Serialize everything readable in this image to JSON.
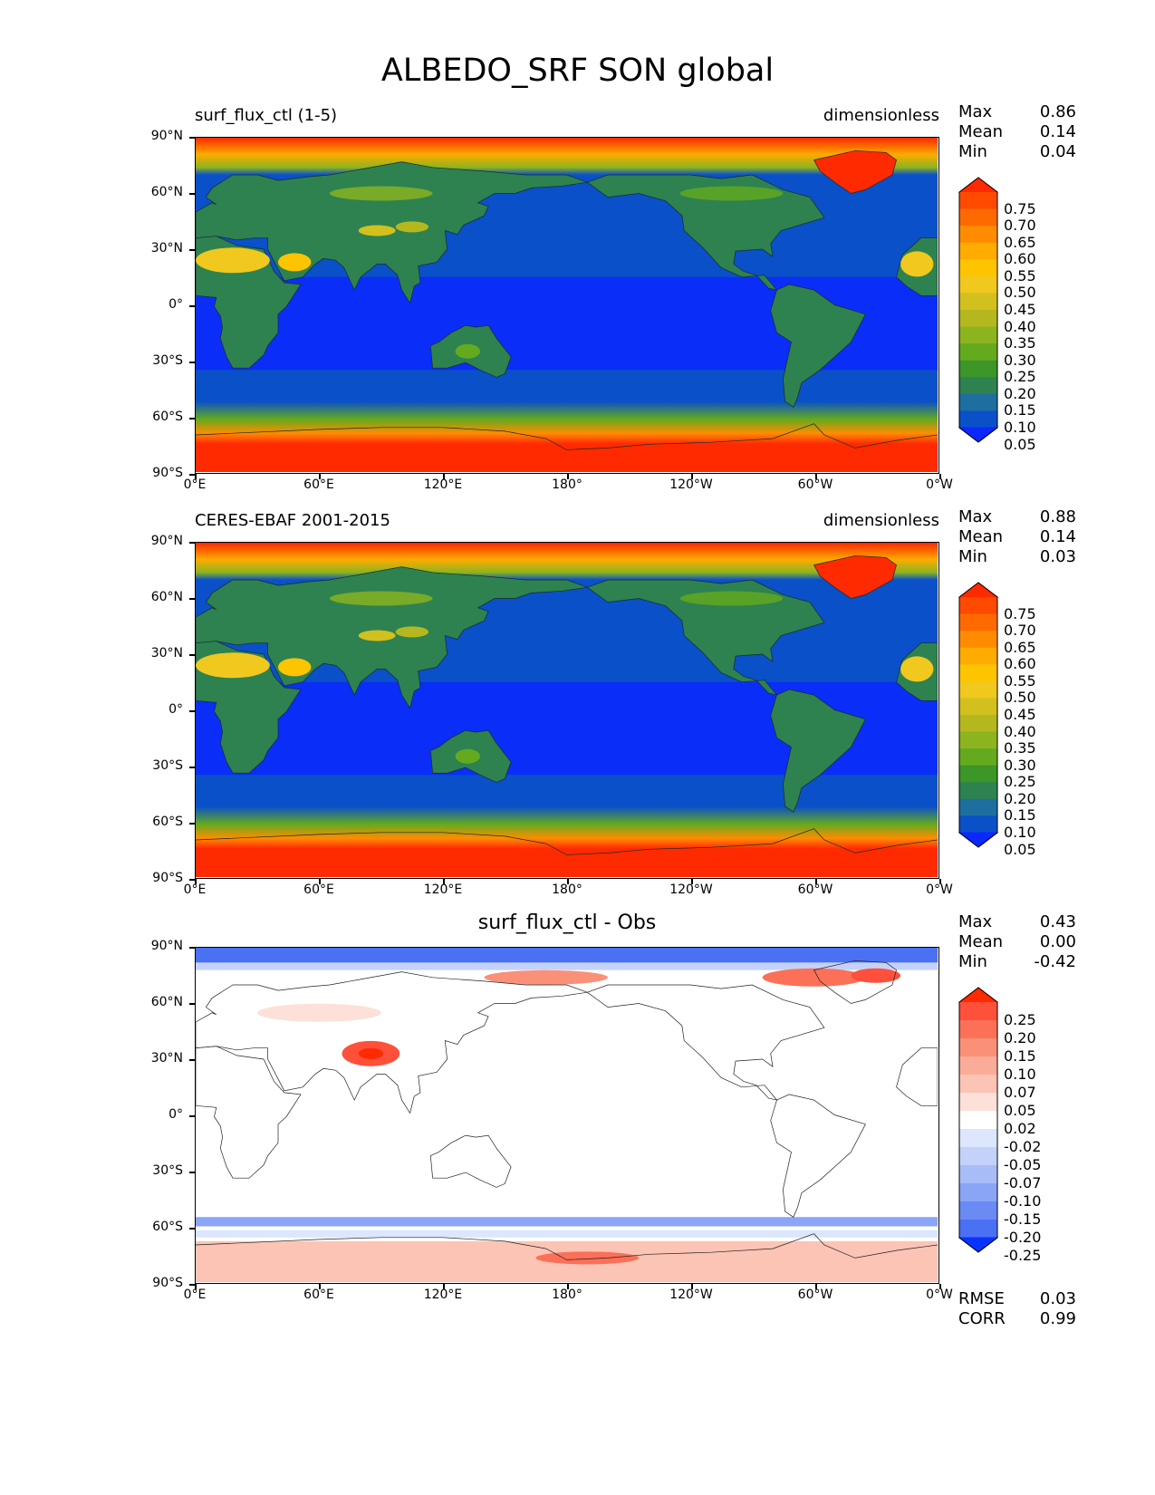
{
  "title": "ALBEDO_SRF SON global",
  "panels": [
    {
      "left_title": "surf_flux_ctl (1-5)",
      "center_title": "",
      "units": "dimensionless",
      "stats": [
        [
          "Max",
          "0.86"
        ],
        [
          "Mean",
          "0.14"
        ],
        [
          "Min",
          "0.04"
        ]
      ],
      "colorbar": "abs"
    },
    {
      "left_title": "CERES-EBAF 2001-2015",
      "center_title": "",
      "units": "dimensionless",
      "stats": [
        [
          "Max",
          "0.88"
        ],
        [
          "Mean",
          "0.14"
        ],
        [
          "Min",
          "0.03"
        ]
      ],
      "colorbar": "abs"
    },
    {
      "left_title": "",
      "center_title": "surf_flux_ctl - Obs",
      "units": "",
      "stats": [
        [
          "Max",
          "0.43"
        ],
        [
          "Mean",
          "0.00"
        ],
        [
          "Min",
          "-0.42"
        ]
      ],
      "colorbar": "diff",
      "extra_stats": [
        [
          "RMSE",
          "0.03"
        ],
        [
          "CORR",
          "0.99"
        ]
      ]
    }
  ],
  "y_ticks": [
    "90°N",
    "60°N",
    "30°N",
    "0°",
    "30°S",
    "60°S",
    "90°S"
  ],
  "x_ticks": [
    "0°E",
    "60°E",
    "120°E",
    "180°",
    "120°W",
    "60°W",
    "0°W"
  ],
  "colorbars": {
    "abs": {
      "labels": [
        "0.75",
        "0.70",
        "0.65",
        "0.60",
        "0.55",
        "0.50",
        "0.45",
        "0.40",
        "0.35",
        "0.30",
        "0.25",
        "0.20",
        "0.15",
        "0.10",
        "0.05"
      ],
      "colors": [
        "#ff2a00",
        "#ff4a00",
        "#ff6a00",
        "#ff8c00",
        "#ffab00",
        "#ffc400",
        "#f0c81e",
        "#d2c01e",
        "#b4b81e",
        "#8cb41e",
        "#64aa1e",
        "#3c9628",
        "#2d8250",
        "#1e6ea0",
        "#0a50c8",
        "#0a28ff"
      ]
    },
    "diff": {
      "labels": [
        "0.25",
        "0.20",
        "0.15",
        "0.10",
        "0.07",
        "0.05",
        "0.02",
        "-0.02",
        "-0.05",
        "-0.07",
        "-0.10",
        "-0.15",
        "-0.20",
        "-0.25"
      ],
      "colors": [
        "#ff2a00",
        "#fe503a",
        "#fc7058",
        "#fb9078",
        "#fbac98",
        "#fcc4b4",
        "#fde0d8",
        "#ffffff",
        "#dce6fc",
        "#c4d2fa",
        "#a8bcf8",
        "#8aa4f6",
        "#6a8af4",
        "#4a70f4",
        "#0a32ff"
      ]
    }
  },
  "colors": {
    "ocean": "#0a50c8",
    "ocean_bright": "#0a28ff",
    "land": "#2d8250",
    "ice": "#ff2a00"
  }
}
